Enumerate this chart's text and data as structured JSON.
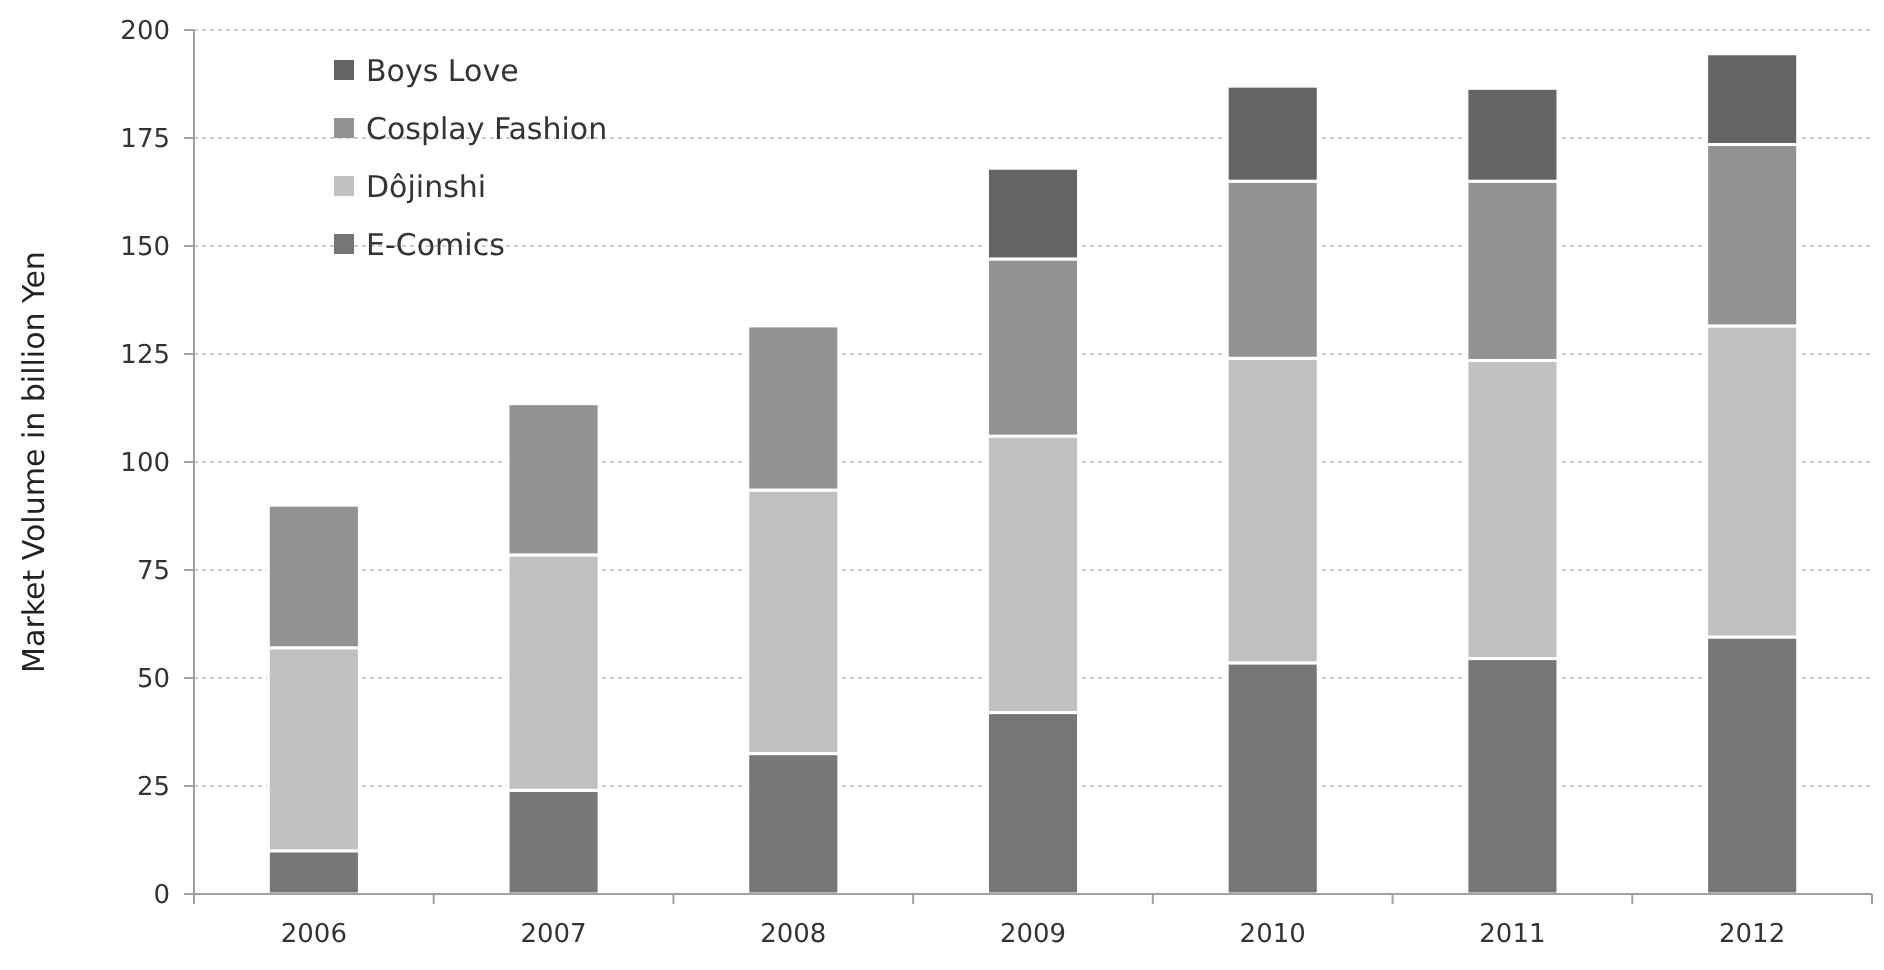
{
  "chart_data": {
    "type": "bar",
    "stacked": true,
    "ylabel": "Market Volume in billion Yen",
    "categories": [
      "2006",
      "2007",
      "2008",
      "2009",
      "2010",
      "2011",
      "2012"
    ],
    "series": [
      {
        "name": "E-Comics",
        "color": "#767676",
        "values": [
          10,
          24,
          32.5,
          42,
          53.5,
          54.5,
          59.5
        ]
      },
      {
        "name": "Dôjinshi",
        "color": "#c0c0c0",
        "values": [
          47,
          54.5,
          61,
          64,
          70.5,
          69,
          72
        ]
      },
      {
        "name": "Cosplay Fashion",
        "color": "#929292",
        "values": [
          33,
          35,
          38,
          41,
          41,
          41.5,
          42
        ]
      },
      {
        "name": "Boys Love",
        "color": "#646464",
        "values": [
          null,
          null,
          null,
          21,
          22,
          21.5,
          21
        ]
      }
    ],
    "ylim": [
      0,
      200
    ],
    "yticks": [
      0,
      25,
      50,
      75,
      100,
      125,
      150,
      175,
      200
    ],
    "grid": "y",
    "legend": "top left"
  }
}
